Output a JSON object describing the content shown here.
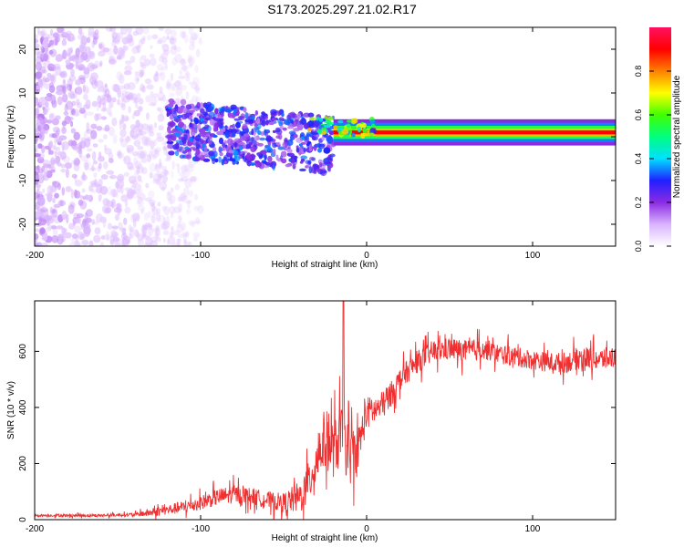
{
  "figure_title": "S173.2025.297.21.02.R17",
  "chart_data": [
    {
      "type": "heatmap",
      "title": "S173.2025.297.21.02.R17",
      "xlabel": "Height of straight line (km)",
      "ylabel": "Frequency (Hz)",
      "xlim": [
        -200,
        150
      ],
      "ylim": [
        -25,
        25
      ],
      "xticks": [
        -200,
        -100,
        0,
        100
      ],
      "yticks": [
        -20,
        -10,
        0,
        10,
        20
      ],
      "colorbar": {
        "label": "Normalized spectral amplitude",
        "range": [
          0,
          1
        ],
        "ticks": [
          0.0,
          0.2,
          0.4,
          0.6,
          0.8
        ],
        "colormap": "white-violet-blue-cyan-green-yellow-red",
        "stops": [
          "#ffffff",
          "#d9b3ff",
          "#8a2be2",
          "#2020ff",
          "#00e0ff",
          "#00ff80",
          "#40ff00",
          "#ffff00",
          "#ff8000",
          "#ff0000",
          "#ff1060"
        ]
      },
      "regions": [
        {
          "name": "scattered noise",
          "x": [
            -200,
            -120
          ],
          "freq": [
            -25,
            25
          ],
          "amplitude": 0.1
        },
        {
          "name": "turbulent band",
          "x": [
            -120,
            -20
          ],
          "freq": [
            -8,
            5
          ],
          "amplitude": 0.3
        },
        {
          "name": "stable carrier line",
          "x": [
            -20,
            150
          ],
          "freq": [
            0.5,
            1.5
          ],
          "amplitude": 0.9
        }
      ]
    },
    {
      "type": "line",
      "xlabel": "Height of straight line (km)",
      "ylabel": "SNR (10 * v/v)",
      "xlim": [
        -200,
        150
      ],
      "ylim": [
        0,
        780
      ],
      "xticks": [
        -200,
        -100,
        0,
        100
      ],
      "yticks": [
        0,
        200,
        400,
        600
      ],
      "series": [
        {
          "name": "SNR",
          "color": "#f03030",
          "x": [
            -200,
            -180,
            -160,
            -140,
            -130,
            -120,
            -110,
            -100,
            -90,
            -80,
            -70,
            -60,
            -50,
            -40,
            -35,
            -30,
            -25,
            -20,
            -15,
            -10,
            -5,
            0,
            5,
            10,
            15,
            20,
            30,
            40,
            50,
            60,
            70,
            80,
            90,
            100,
            110,
            120,
            130,
            140,
            150
          ],
          "values": [
            15,
            15,
            15,
            18,
            25,
            35,
            45,
            60,
            80,
            90,
            85,
            70,
            60,
            80,
            130,
            220,
            290,
            250,
            300,
            220,
            260,
            380,
            390,
            410,
            450,
            500,
            560,
            600,
            610,
            600,
            610,
            590,
            580,
            570,
            560,
            560,
            580,
            570,
            580
          ],
          "noise_amplitude": [
            8,
            10,
            10,
            12,
            30,
            35,
            45,
            50,
            60,
            65,
            60,
            60,
            70,
            120,
            150,
            180,
            220,
            200,
            220,
            200,
            150,
            120,
            100,
            100,
            90,
            80,
            80,
            80,
            80,
            80,
            75,
            70,
            70,
            70,
            70,
            75,
            80,
            80,
            80
          ],
          "peaks": [
            {
              "x": -14,
              "y": 780
            }
          ]
        }
      ]
    }
  ]
}
